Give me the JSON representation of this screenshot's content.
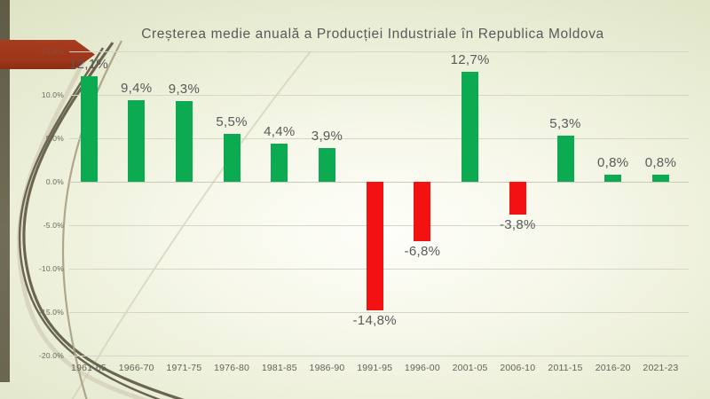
{
  "chart_data": {
    "type": "bar",
    "title": "Creșterea medie anuală a Producției Industriale în Republica Moldova",
    "categories": [
      "1961-65",
      "1966-70",
      "1971-75",
      "1976-80",
      "1981-85",
      "1986-90",
      "1991-95",
      "1996-00",
      "2001-05",
      "2006-10",
      "2011-15",
      "2016-20",
      "2021-23"
    ],
    "values": [
      12.1,
      9.4,
      9.3,
      5.5,
      4.4,
      3.9,
      -14.8,
      -6.8,
      12.7,
      -3.8,
      5.3,
      0.8,
      0.8
    ],
    "value_labels": [
      "12,1%",
      "9,4%",
      "9,3%",
      "5,5%",
      "4,4%",
      "3,9%",
      "-14,8%",
      "-6,8%",
      "12,7%",
      "-3,8%",
      "5,3%",
      "0,8%",
      "0,8%"
    ],
    "xlabel": "",
    "ylabel": "",
    "ylim": [
      -20,
      15
    ],
    "y_tick_values": [
      15,
      10,
      5,
      0,
      -5,
      -10,
      -15,
      -20
    ],
    "y_tick_labels": [
      "15.0%",
      "10.0%",
      "5.0%",
      "0.0%",
      "-5.0%",
      "-10.0%",
      "-15.0%",
      "-20.0%"
    ],
    "grid": true,
    "legend_position": "none",
    "bar_colors": {
      "positive": "#0CAB52",
      "negative": "#F31111"
    }
  },
  "theme": {
    "background_base": "#E9ECD4",
    "accent_arrow": "#9E3518",
    "edge_strip": "#6E6A54",
    "text": "#595959",
    "gridline": "#D5D6C8"
  }
}
